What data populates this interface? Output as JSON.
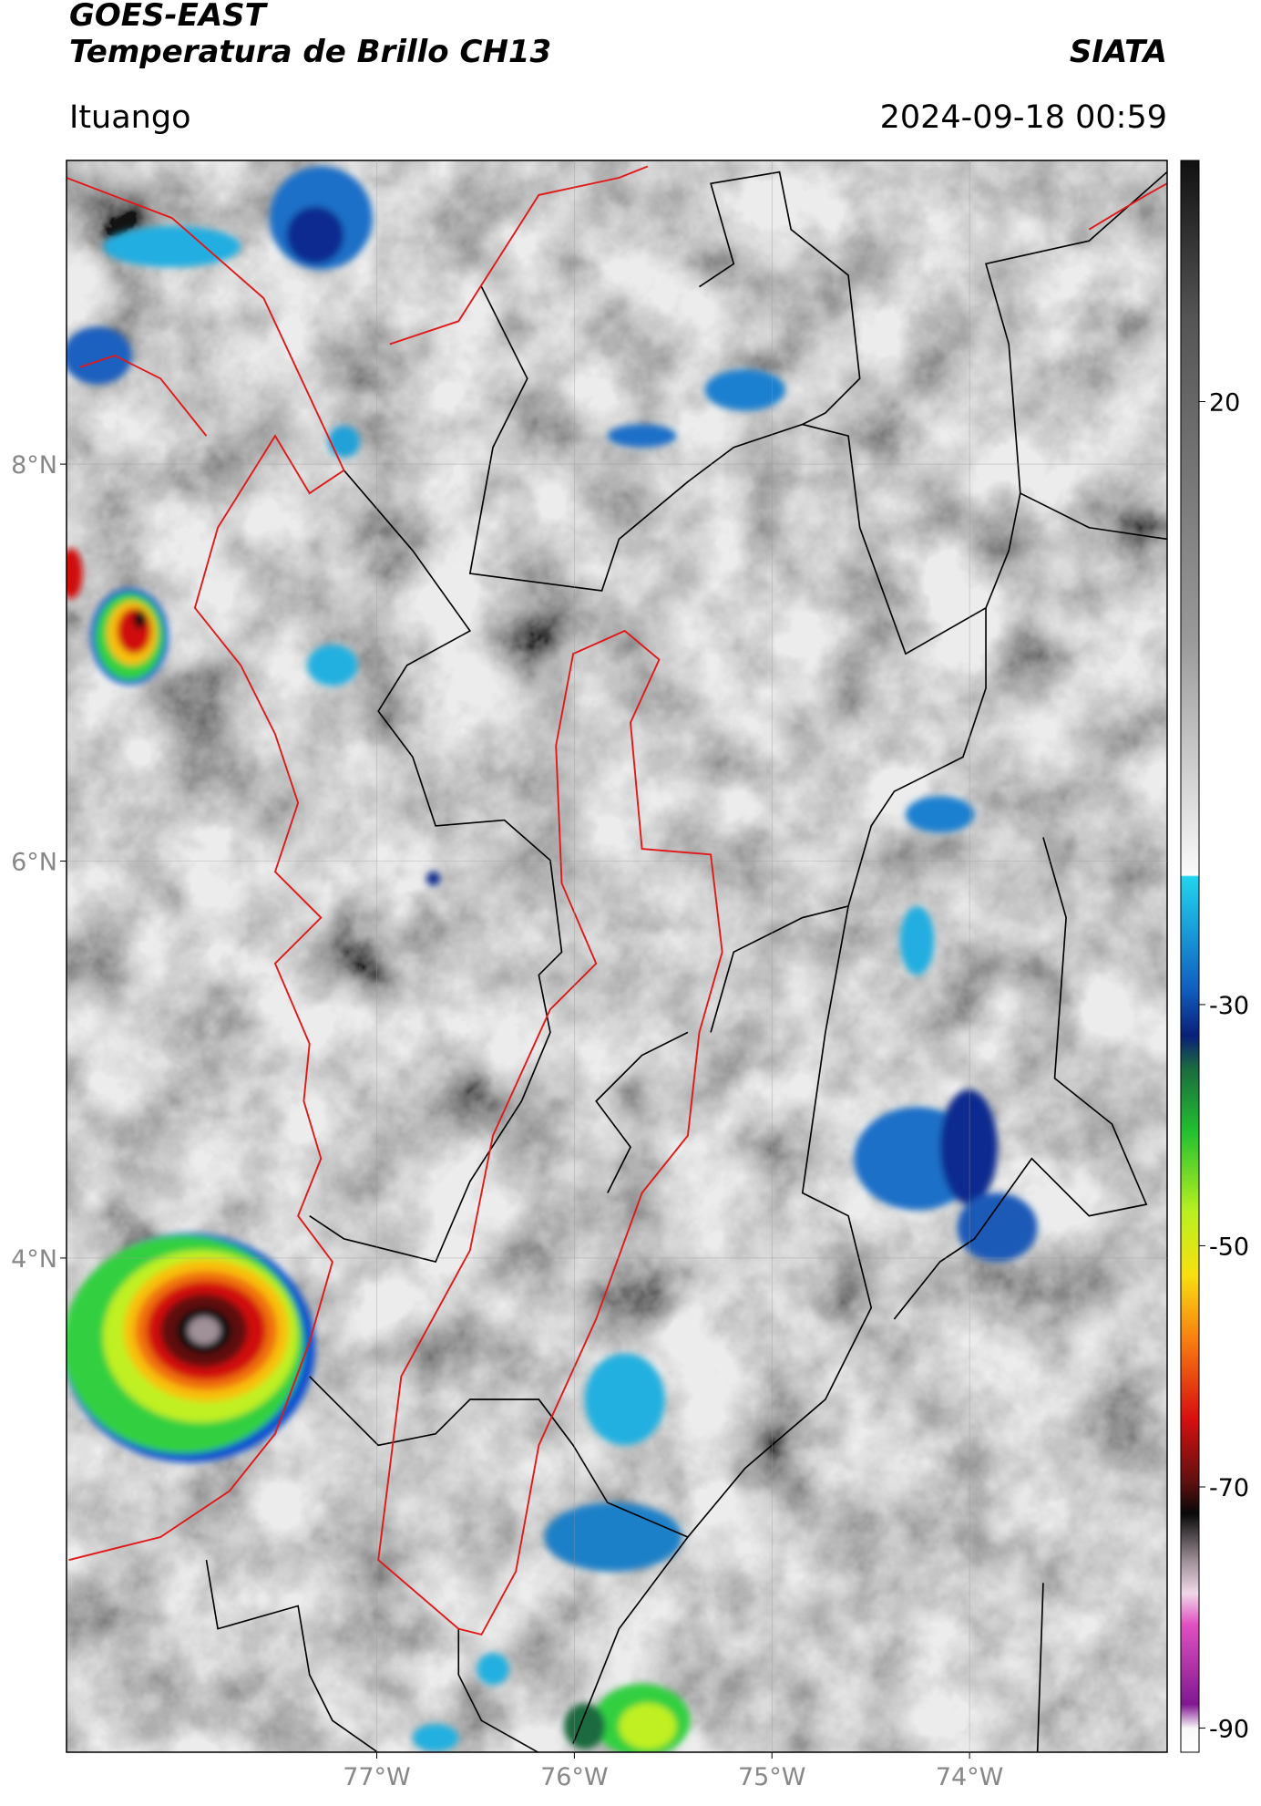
{
  "header": {
    "satellite": "GOES-EAST",
    "product": "Temperatura de Brillo CH13",
    "source": "SIATA",
    "location": "Ituango",
    "datetime": "2024-09-18 00:59"
  },
  "map": {
    "xlim": [
      -78.57,
      -73.0
    ],
    "ylim": [
      1.51,
      9.53
    ],
    "xticks": [
      {
        "value": -77,
        "label": "77°W"
      },
      {
        "value": -76,
        "label": "76°W"
      },
      {
        "value": -75,
        "label": "75°W"
      },
      {
        "value": -74,
        "label": "74°W"
      }
    ],
    "yticks": [
      {
        "value": 8,
        "label": "8°N"
      },
      {
        "value": 6,
        "label": "6°N"
      },
      {
        "value": 4,
        "label": "4°N"
      }
    ],
    "grid": true
  },
  "colorbar": {
    "lim": [
      -92,
      40
    ],
    "ticks": [
      20,
      -30,
      -50,
      -70,
      -90
    ]
  }
}
